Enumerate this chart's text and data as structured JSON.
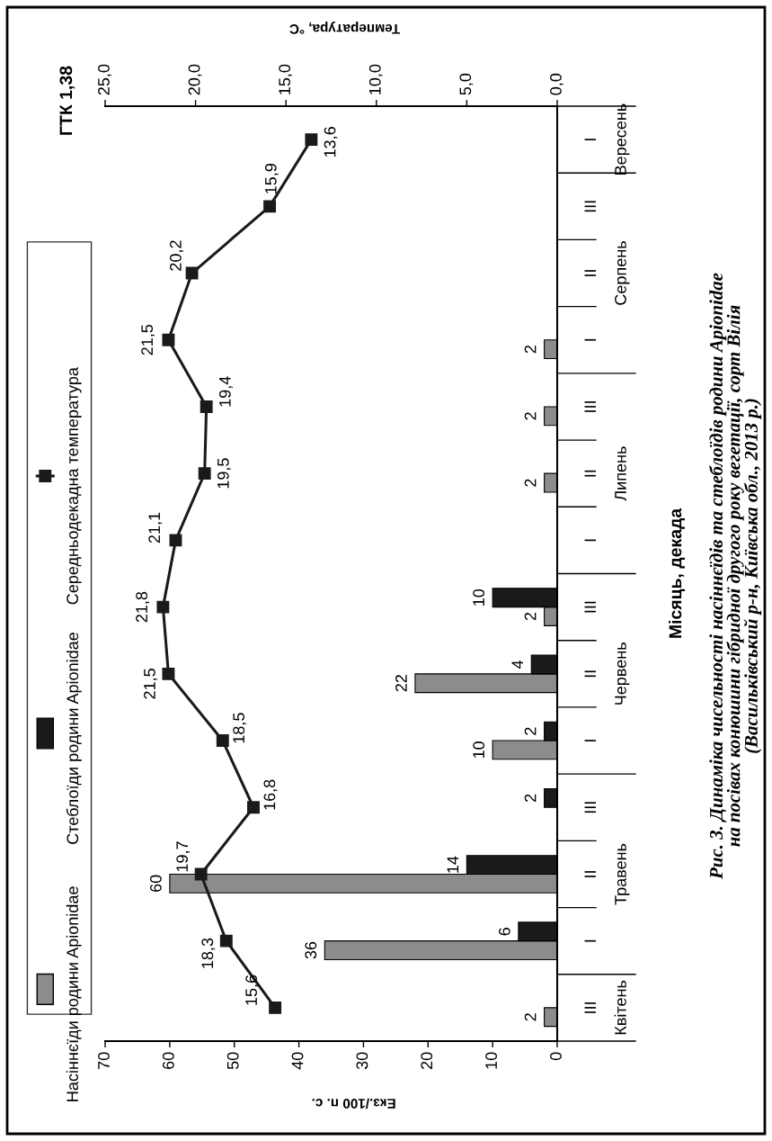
{
  "chart_data": {
    "type": "bar",
    "orientation": "horizontal",
    "xlabel": "Екз./100 п. с.",
    "x2label": "Температура, °С",
    "ylabel": "Місяць, декада",
    "categories": [
      "I",
      "III",
      "II",
      "I",
      "III",
      "II",
      "I",
      "III",
      "II",
      "I",
      "III",
      "II",
      "I",
      "III"
    ],
    "series": [
      {
        "name": "Насіннєїди родини Apionidae",
        "color": "#8c8c8c",
        "values": [
          null,
          null,
          null,
          2,
          2,
          2,
          null,
          2,
          22,
          10,
          null,
          60,
          36,
          2
        ],
        "value_labels": [
          null,
          null,
          null,
          "2",
          "2",
          "2",
          null,
          "2",
          "22",
          "10",
          null,
          "60",
          "36",
          "2"
        ]
      },
      {
        "name": "Стеблоїди родини Apionidae",
        "color": "#1a1a1a",
        "values": [
          null,
          null,
          null,
          null,
          null,
          null,
          null,
          10,
          4,
          2,
          2,
          14,
          6,
          null
        ],
        "value_labels": [
          null,
          null,
          null,
          null,
          null,
          null,
          null,
          "10",
          "4",
          "2",
          "2",
          "14",
          "6",
          null
        ]
      },
      {
        "name": "Середньодекадна температура",
        "type": "line",
        "axis": "x2",
        "color": "#1a1a1a",
        "marker": "square",
        "values": [
          13.6,
          15.9,
          20.2,
          21.5,
          19.4,
          19.5,
          21.1,
          21.8,
          21.5,
          18.5,
          16.8,
          19.7,
          18.3,
          15.6
        ],
        "value_labels": [
          "13,6",
          "15,9",
          "20,2",
          "21,5",
          "19,4",
          "19,5",
          "21,1",
          "21,8",
          "21,5",
          "18,5",
          "16,8",
          "19,7",
          "18,3",
          "15,6"
        ]
      }
    ],
    "xlim": [
      70,
      0
    ],
    "xticks": [
      0,
      10,
      20,
      30,
      40,
      50,
      60,
      70
    ],
    "x2lim": [
      25,
      0
    ],
    "x2ticks": [
      {
        "value": 0,
        "label": "0,0"
      },
      {
        "value": 5,
        "label": "5,0"
      },
      {
        "value": 10,
        "label": "10,0"
      },
      {
        "value": 15,
        "label": "15,0"
      },
      {
        "value": 20,
        "label": "20,0"
      },
      {
        "value": 25,
        "label": "25,0"
      }
    ],
    "legend": "left",
    "annotations": [
      "ГТК 1,38",
      "Вересень",
      "Серпень",
      "Липень",
      "Червень",
      "Травень",
      "Квітень",
      "Рис. 3. Динаміка чисельності насіннєїдів та стеблоїдів родини Apionidae\nна посівах конюшини гібридної другого року вегетації, сорт Вілія\n(Васильківський р-н, Київська обл., 2013 р.)"
    ]
  }
}
